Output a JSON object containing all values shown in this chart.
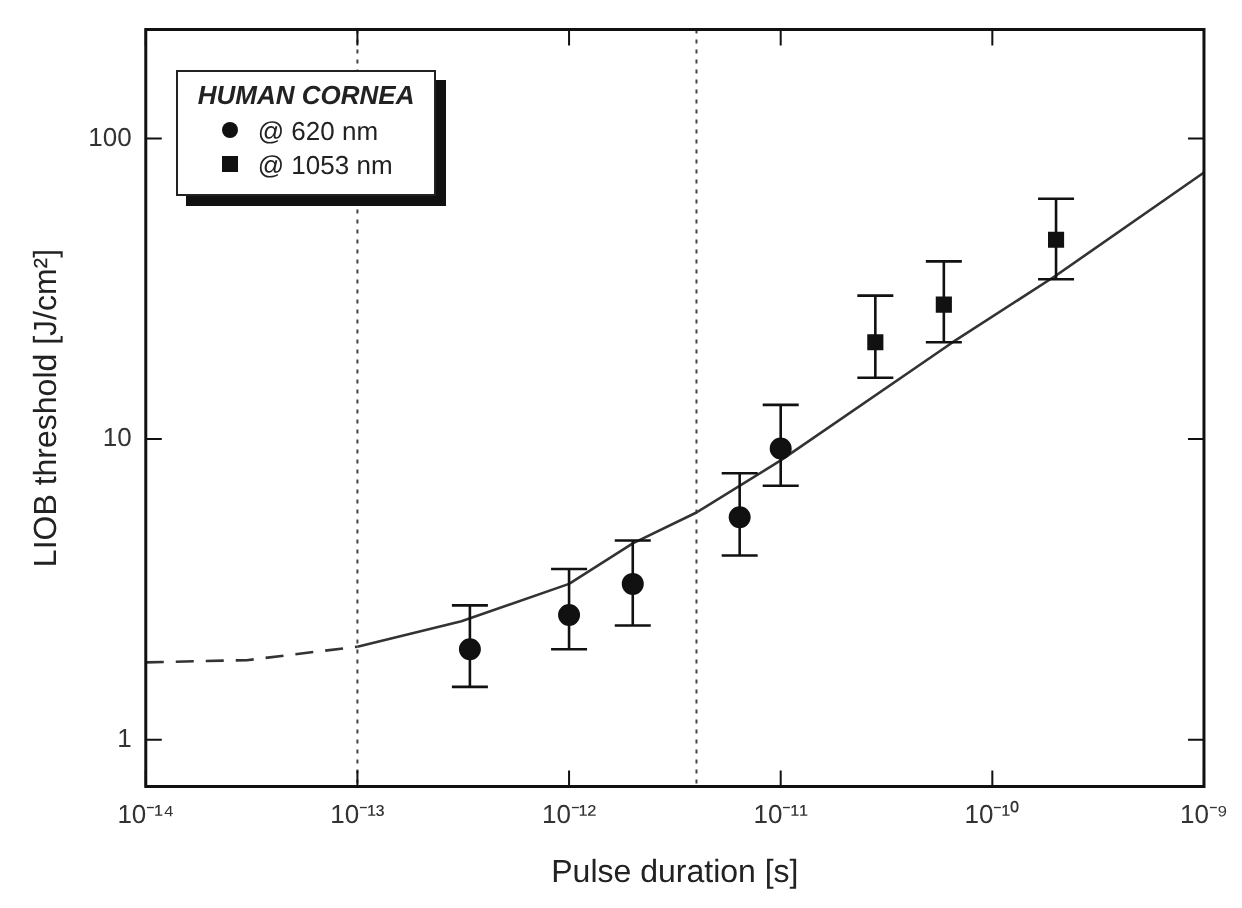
{
  "chart_data": {
    "type": "scatter",
    "xlabel": "Pulse duration [s]",
    "ylabel": "LIOB threshold [J/cm²]",
    "legend_title": "HUMAN CORNEA",
    "legend": "top left",
    "log": "xy",
    "grid": false,
    "xlim": [
      1e-14,
      1e-09
    ],
    "xticks": [
      {
        "value": 1e-14,
        "label": "10⁻¹⁴"
      },
      {
        "value": 1e-13,
        "label": "10⁻¹³"
      },
      {
        "value": 1e-12,
        "label": "10⁻¹²"
      },
      {
        "value": 1e-11,
        "label": "10⁻¹¹"
      },
      {
        "value": 1e-10,
        "label": "10⁻¹⁰"
      },
      {
        "value": 1e-09,
        "label": "10⁻⁹"
      }
    ],
    "ylim": [
      0.7,
      230
    ],
    "yticks": [
      1,
      10,
      100
    ],
    "ref_lines": [
      {
        "axis": "x",
        "value": 1e-13,
        "line_style": "dotted",
        "color": "#444444"
      },
      {
        "axis": "x",
        "value": 4e-12,
        "line_style": "dotted",
        "color": "#444444"
      }
    ],
    "series": [
      {
        "name": "@ 620 nm",
        "type": "scatter",
        "marker": "circle",
        "color": "#111111",
        "x": [
          3.4e-13,
          1e-12,
          2e-12,
          6.4e-12,
          1e-11
        ],
        "values": [
          2.0,
          2.6,
          3.3,
          5.5,
          9.3
        ],
        "errors": [
          [
            1.5,
            2.8
          ],
          [
            2.0,
            3.7
          ],
          [
            2.4,
            4.6
          ],
          [
            4.1,
            7.7
          ],
          [
            7.0,
            13
          ]
        ]
      },
      {
        "name": "@ 1053 nm",
        "type": "scatter",
        "marker": "square",
        "color": "#111111",
        "x": [
          2.8e-11,
          5.9e-11,
          2e-10
        ],
        "values": [
          21,
          28,
          46
        ],
        "errors": [
          [
            16,
            30
          ],
          [
            21,
            39
          ],
          [
            34,
            63
          ]
        ]
      },
      {
        "type": "line",
        "marker": "none",
        "line_style": "dashed",
        "color": "#333333",
        "x": [
          1e-14,
          3e-14,
          1e-13
        ],
        "values": [
          1.81,
          1.84,
          2.04
        ]
      },
      {
        "type": "line",
        "marker": "none",
        "line_style": "solid",
        "color": "#333333",
        "x": [
          1e-13,
          3.1e-13,
          1e-12,
          2e-12,
          4e-12,
          1e-11,
          6.5e-11,
          2e-10,
          1e-09
        ],
        "values": [
          2.04,
          2.48,
          3.3,
          4.5,
          5.7,
          8.5,
          21,
          35,
          77
        ]
      }
    ]
  }
}
